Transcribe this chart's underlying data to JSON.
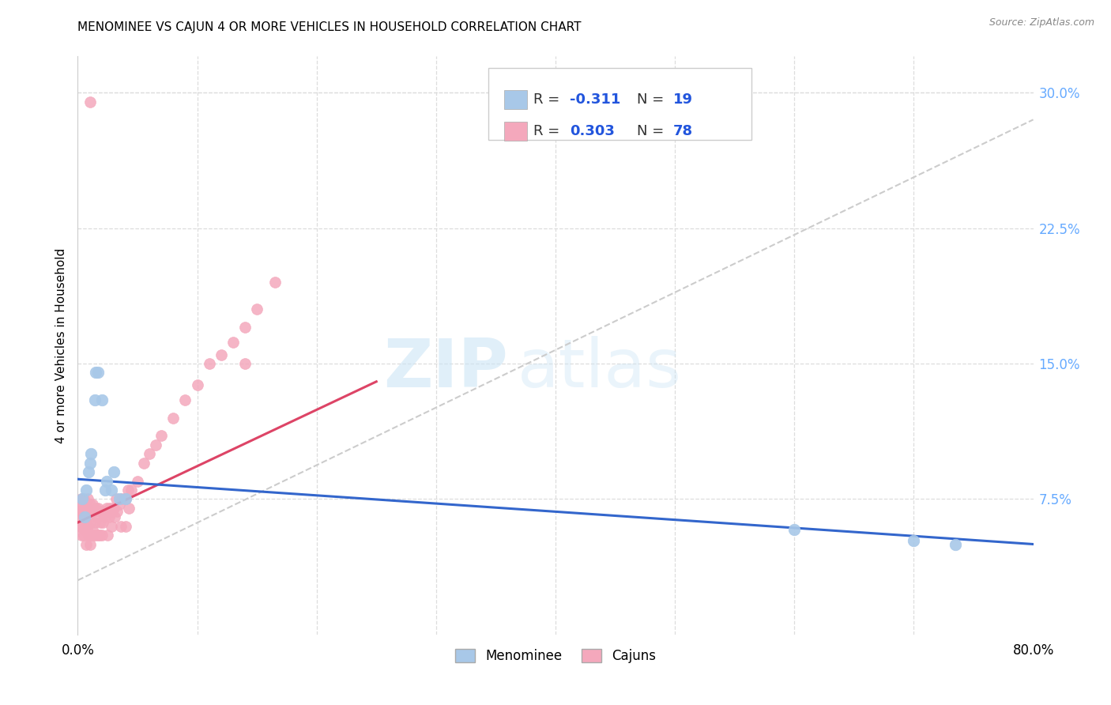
{
  "title": "MENOMINEE VS CAJUN 4 OR MORE VEHICLES IN HOUSEHOLD CORRELATION CHART",
  "source": "Source: ZipAtlas.com",
  "ylabel": "4 or more Vehicles in Household",
  "xlim": [
    0.0,
    0.8
  ],
  "ylim": [
    0.0,
    0.32
  ],
  "menominee_color": "#a8c8e8",
  "cajun_color": "#f4a8bc",
  "menominee_line_color": "#3366cc",
  "cajun_line_color": "#dd4466",
  "trend_line_color": "#cccccc",
  "right_tick_color": "#66aaff",
  "legend_r_color": "#2255dd",
  "background_color": "#ffffff",
  "grid_color": "#dddddd",
  "menominee_x": [
    0.004,
    0.006,
    0.007,
    0.009,
    0.01,
    0.011,
    0.014,
    0.015,
    0.017,
    0.02,
    0.023,
    0.024,
    0.028,
    0.03,
    0.035,
    0.04,
    0.6,
    0.7,
    0.735
  ],
  "menominee_y": [
    0.075,
    0.065,
    0.08,
    0.09,
    0.095,
    0.1,
    0.13,
    0.145,
    0.145,
    0.13,
    0.08,
    0.085,
    0.08,
    0.09,
    0.075,
    0.075,
    0.058,
    0.052,
    0.05
  ],
  "cajun_x": [
    0.001,
    0.002,
    0.002,
    0.003,
    0.003,
    0.003,
    0.004,
    0.004,
    0.005,
    0.005,
    0.005,
    0.006,
    0.006,
    0.007,
    0.007,
    0.007,
    0.008,
    0.008,
    0.009,
    0.009,
    0.01,
    0.01,
    0.01,
    0.011,
    0.011,
    0.012,
    0.012,
    0.013,
    0.013,
    0.014,
    0.015,
    0.015,
    0.016,
    0.017,
    0.017,
    0.018,
    0.018,
    0.019,
    0.02,
    0.02,
    0.021,
    0.022,
    0.023,
    0.024,
    0.025,
    0.025,
    0.026,
    0.027,
    0.028,
    0.029,
    0.03,
    0.031,
    0.032,
    0.033,
    0.035,
    0.036,
    0.037,
    0.04,
    0.04,
    0.042,
    0.043,
    0.045,
    0.05,
    0.055,
    0.06,
    0.065,
    0.07,
    0.08,
    0.09,
    0.1,
    0.11,
    0.12,
    0.13,
    0.14,
    0.15,
    0.165,
    0.01,
    0.14
  ],
  "cajun_y": [
    0.07,
    0.068,
    0.06,
    0.075,
    0.065,
    0.055,
    0.072,
    0.06,
    0.075,
    0.065,
    0.055,
    0.068,
    0.058,
    0.072,
    0.062,
    0.05,
    0.075,
    0.06,
    0.068,
    0.055,
    0.072,
    0.062,
    0.05,
    0.068,
    0.055,
    0.072,
    0.058,
    0.068,
    0.055,
    0.062,
    0.07,
    0.055,
    0.065,
    0.07,
    0.055,
    0.068,
    0.055,
    0.062,
    0.068,
    0.055,
    0.062,
    0.068,
    0.065,
    0.07,
    0.068,
    0.055,
    0.065,
    0.07,
    0.06,
    0.068,
    0.07,
    0.065,
    0.075,
    0.068,
    0.072,
    0.06,
    0.075,
    0.075,
    0.06,
    0.08,
    0.07,
    0.08,
    0.085,
    0.095,
    0.1,
    0.105,
    0.11,
    0.12,
    0.13,
    0.138,
    0.15,
    0.155,
    0.162,
    0.17,
    0.18,
    0.195,
    0.295,
    0.15
  ],
  "men_line_x": [
    0.0,
    0.8
  ],
  "men_line_y": [
    0.086,
    0.05
  ],
  "caj_line_x": [
    0.0,
    0.25
  ],
  "caj_line_y": [
    0.062,
    0.14
  ],
  "trend_x": [
    0.0,
    0.8
  ],
  "trend_y": [
    0.03,
    0.285
  ]
}
